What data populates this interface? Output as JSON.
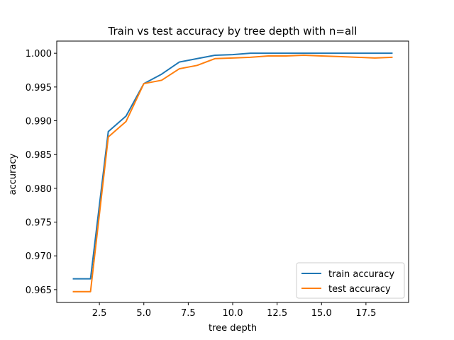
{
  "chart_data": {
    "type": "line",
    "title": "Train vs test accuracy by tree depth with n=all",
    "xlabel": "tree depth",
    "ylabel": "accuracy",
    "xlim": [
      0.1,
      19.9
    ],
    "ylim": [
      0.9631,
      1.0018
    ],
    "xticks": [
      2.5,
      5.0,
      7.5,
      10.0,
      12.5,
      15.0,
      17.5
    ],
    "xtick_labels": [
      "2.5",
      "5.0",
      "7.5",
      "10.0",
      "12.5",
      "15.0",
      "17.5"
    ],
    "yticks": [
      0.965,
      0.97,
      0.975,
      0.98,
      0.985,
      0.99,
      0.995,
      1.0
    ],
    "ytick_labels": [
      "0.965",
      "0.970",
      "0.975",
      "0.980",
      "0.985",
      "0.990",
      "0.995",
      "1.000"
    ],
    "grid": false,
    "legend_position": "lower-right",
    "x": [
      1,
      2,
      3,
      4,
      5,
      6,
      7,
      8,
      9,
      10,
      11,
      12,
      13,
      14,
      15,
      16,
      17,
      18,
      19
    ],
    "series": [
      {
        "name": "train accuracy",
        "color": "#1f77b4",
        "values": [
          0.9666,
          0.9666,
          0.9884,
          0.9907,
          0.9955,
          0.9969,
          0.9987,
          0.9992,
          0.9997,
          0.9998,
          1.0,
          1.0,
          1.0,
          1.0,
          1.0,
          1.0,
          1.0,
          1.0,
          1.0
        ]
      },
      {
        "name": "test accuracy",
        "color": "#ff7f0e",
        "values": [
          0.9647,
          0.9647,
          0.9876,
          0.9899,
          0.9955,
          0.996,
          0.9977,
          0.9982,
          0.9992,
          0.9993,
          0.9994,
          0.9996,
          0.9996,
          0.9997,
          0.9996,
          0.9995,
          0.9994,
          0.9993,
          0.9994
        ]
      }
    ]
  }
}
